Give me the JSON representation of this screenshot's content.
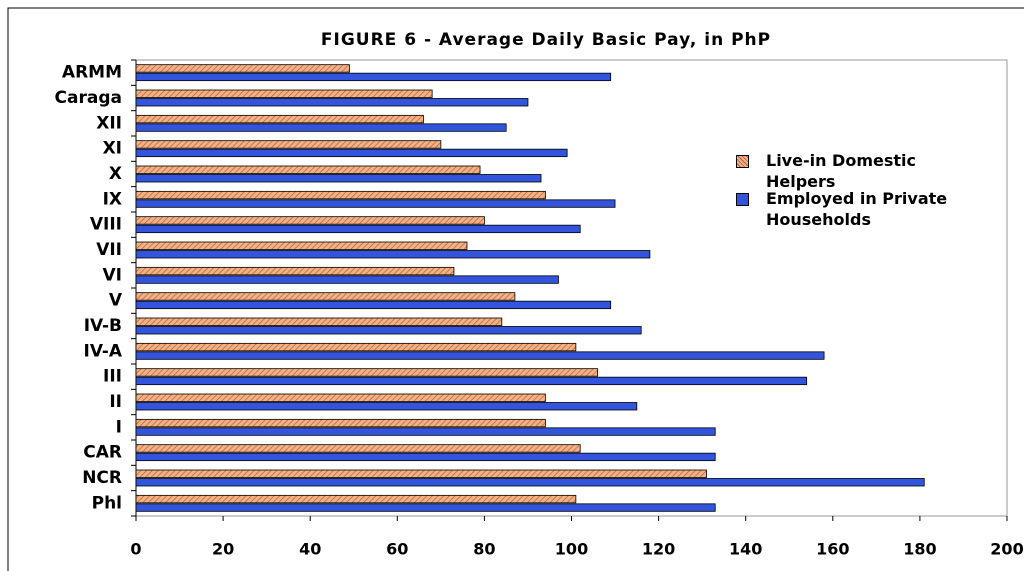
{
  "chart_data": {
    "type": "bar",
    "orientation": "horizontal",
    "title": "FIGURE 6 - Average Daily Basic Pay, in PhP",
    "categories": [
      "Phl",
      "NCR",
      "CAR",
      "I",
      "II",
      "III",
      "IV-A",
      "IV-B",
      "V",
      "VI",
      "VII",
      "VIII",
      "IX",
      "X",
      "XI",
      "XII",
      "Caraga",
      "ARMM"
    ],
    "series": [
      {
        "name": "Live-in Domestic Helpers",
        "color": "#f4b183",
        "pattern": "hatch",
        "values": [
          101,
          131,
          102,
          94,
          94,
          106,
          101,
          84,
          87,
          73,
          76,
          80,
          94,
          79,
          70,
          66,
          68,
          49
        ]
      },
      {
        "name": "Employed in Private Households",
        "color": "#3355dd",
        "values": [
          133,
          181,
          133,
          133,
          115,
          154,
          158,
          116,
          109,
          97,
          118,
          102,
          110,
          93,
          99,
          85,
          90,
          109
        ]
      }
    ],
    "xlim": [
      0,
      200
    ],
    "xticks": [
      0,
      20,
      40,
      60,
      80,
      100,
      120,
      140,
      160,
      180,
      200
    ],
    "legend": "right"
  }
}
